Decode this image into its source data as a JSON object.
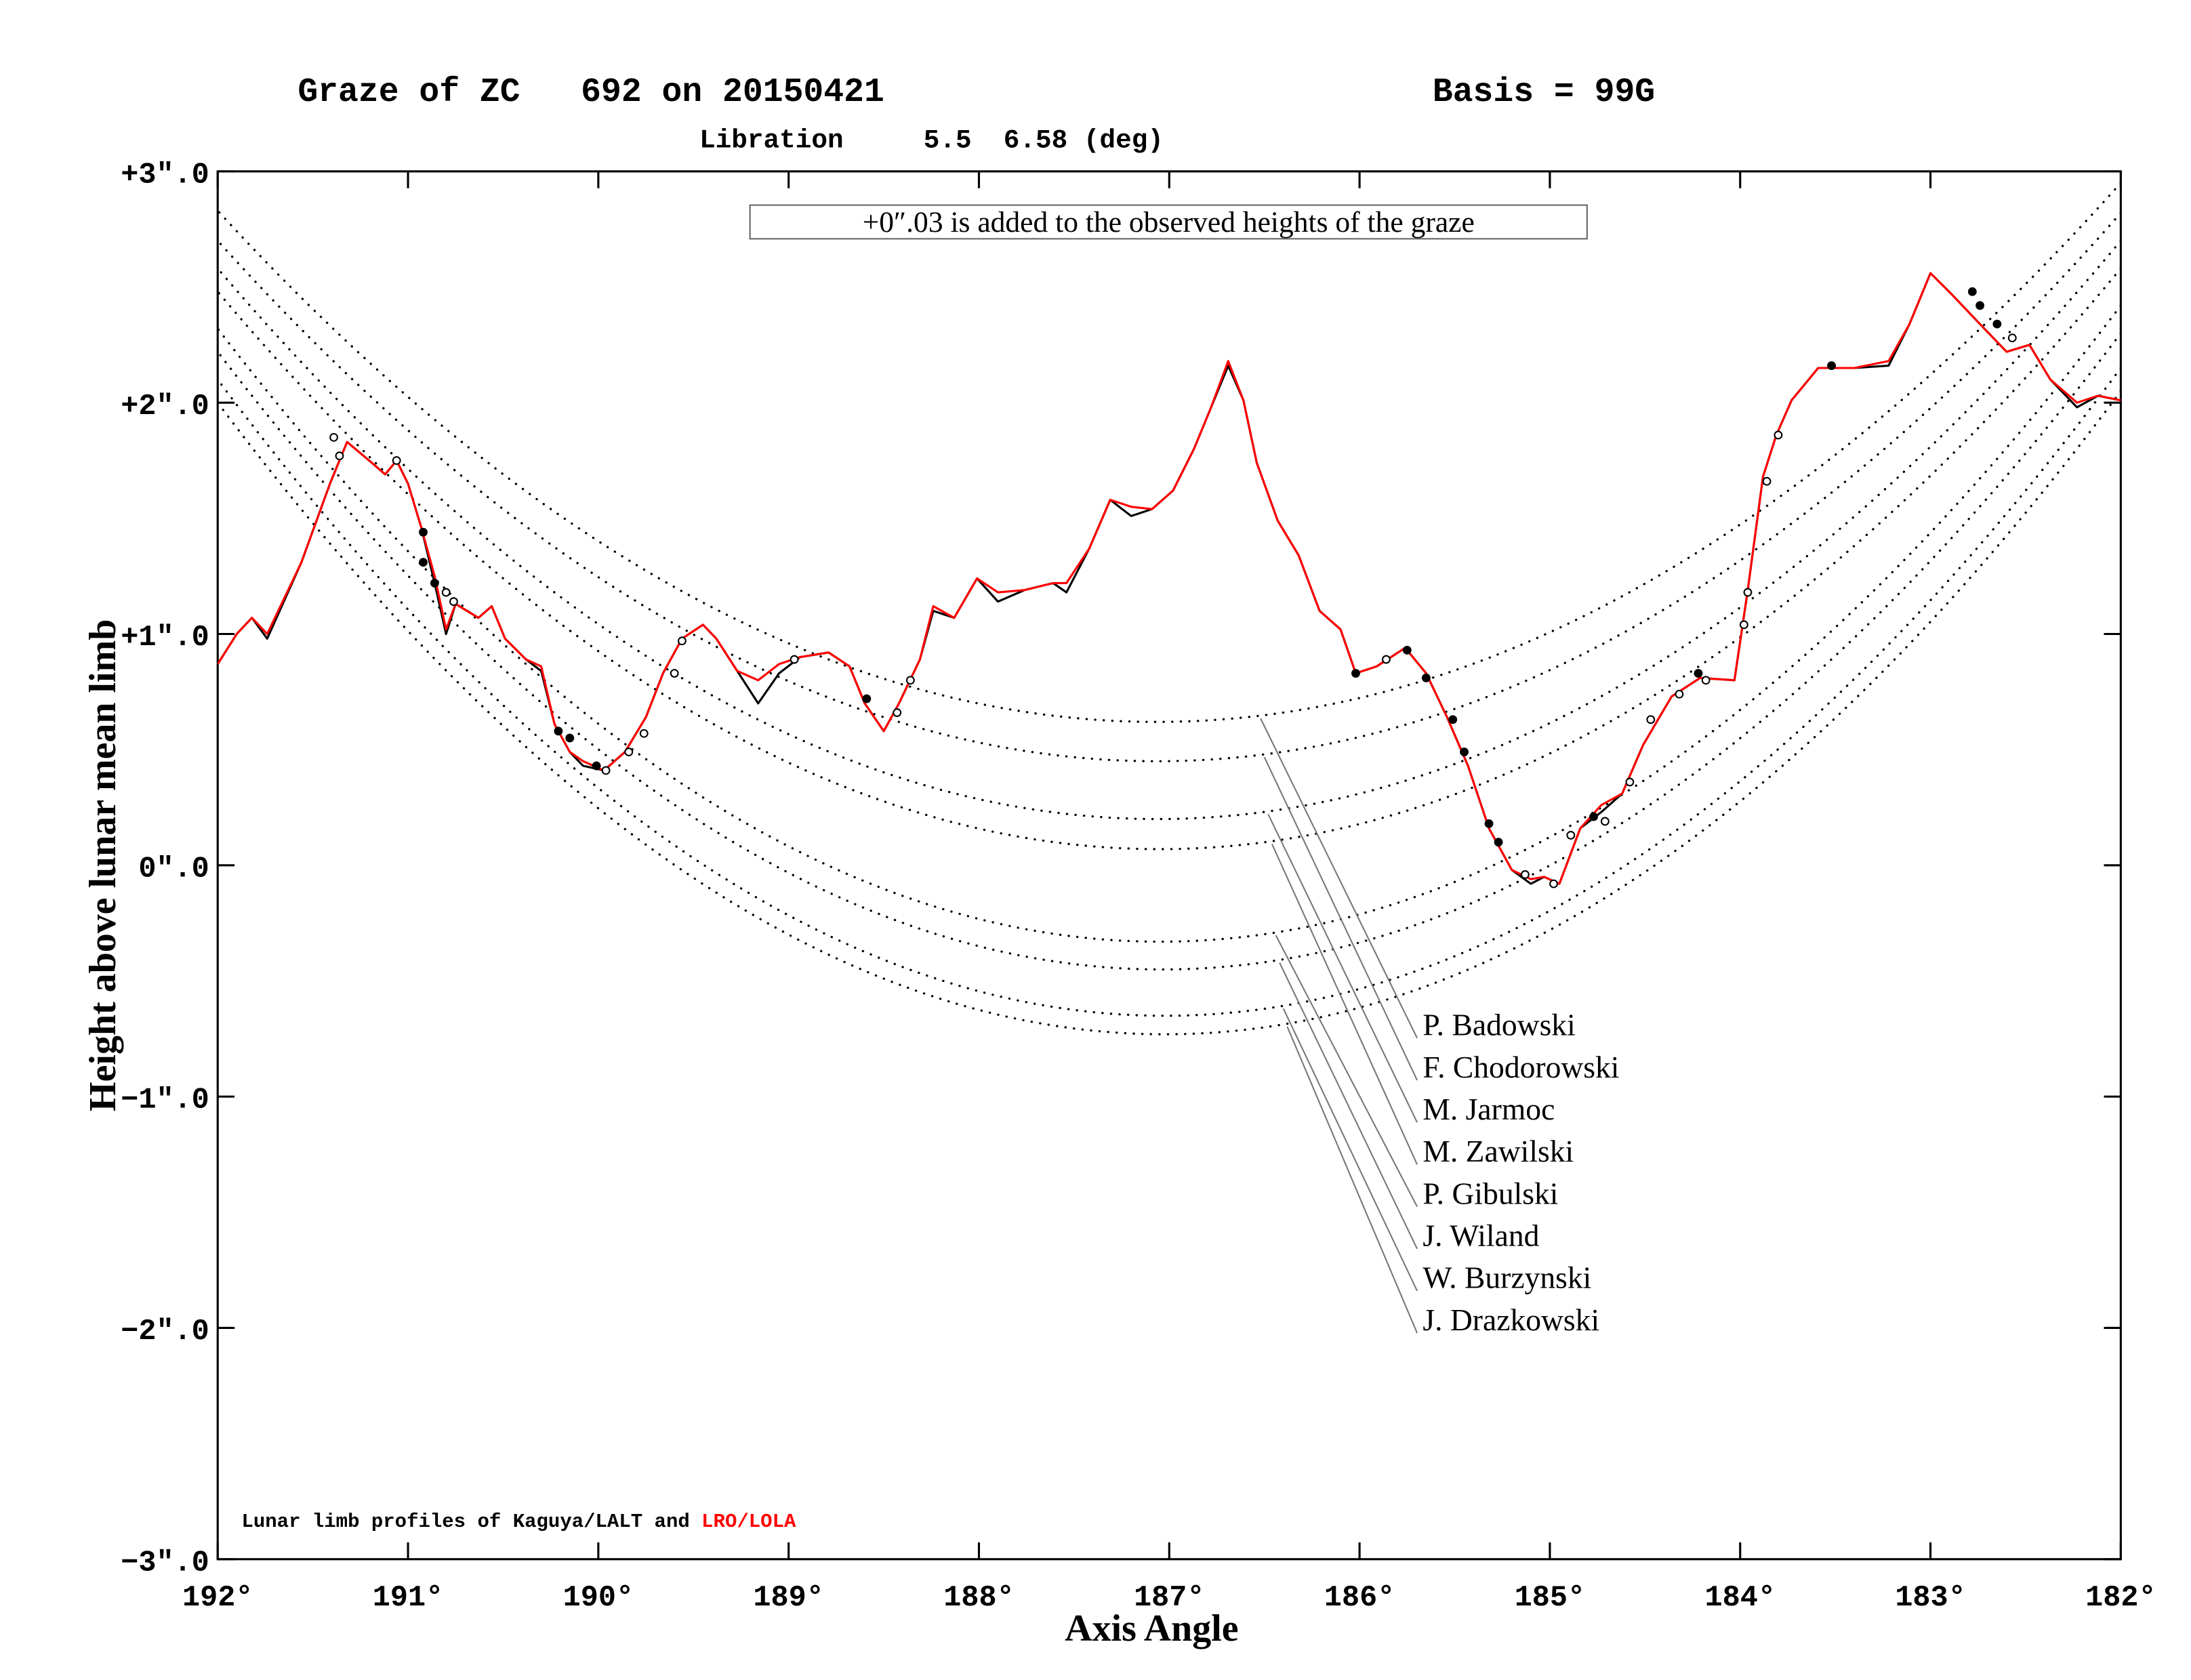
{
  "chart_data": {
    "type": "line",
    "title": "Graze of ZC   692 on 20150421",
    "basis": "Basis = 99G",
    "subtitle": "Libration     5.5  6.58 (deg)",
    "annotation": "+0″.03 is added to the observed heights of the graze",
    "xlabel": "Axis Angle",
    "ylabel": "Height above lunar mean limb",
    "legend_prefix": "Lunar limb profiles of",
    "legend_joiner": "and",
    "xlim": [
      192,
      182
    ],
    "ylim": [
      -3,
      3
    ],
    "xticks": [
      {
        "value": 192,
        "label": "192°"
      },
      {
        "value": 191,
        "label": "191°"
      },
      {
        "value": 190,
        "label": "190°"
      },
      {
        "value": 189,
        "label": "189°"
      },
      {
        "value": 188,
        "label": "188°"
      },
      {
        "value": 187,
        "label": "187°"
      },
      {
        "value": 186,
        "label": "186°"
      },
      {
        "value": 185,
        "label": "185°"
      },
      {
        "value": 184,
        "label": "184°"
      },
      {
        "value": 183,
        "label": "183°"
      },
      {
        "value": 182,
        "label": "182°"
      }
    ],
    "yticks": [
      {
        "value": 3,
        "label": "+3″.0"
      },
      {
        "value": 2,
        "label": "+2″.0"
      },
      {
        "value": 1,
        "label": "+1″.0"
      },
      {
        "value": 0,
        "label": "0″.0"
      },
      {
        "value": -1,
        "label": "−1″.0"
      },
      {
        "value": -2,
        "label": "−2″.0"
      },
      {
        "value": -3,
        "label": "−3″.0"
      }
    ],
    "x": [
      192.0,
      191.9,
      191.82,
      191.74,
      191.56,
      191.41,
      191.32,
      191.19,
      191.12,
      191.06,
      191.0,
      190.93,
      190.86,
      190.8,
      190.75,
      190.63,
      190.56,
      190.49,
      190.38,
      190.3,
      190.23,
      190.15,
      190.08,
      189.97,
      189.86,
      189.75,
      189.66,
      189.56,
      189.45,
      189.38,
      189.27,
      189.16,
      189.05,
      188.94,
      188.79,
      188.68,
      188.6,
      188.5,
      188.42,
      188.31,
      188.24,
      188.13,
      188.01,
      187.9,
      187.76,
      187.61,
      187.54,
      187.42,
      187.31,
      187.2,
      187.09,
      186.98,
      186.87,
      186.78,
      186.69,
      186.61,
      186.54,
      186.43,
      186.32,
      186.21,
      186.1,
      186.02,
      185.91,
      185.76,
      185.65,
      185.54,
      185.43,
      185.32,
      185.2,
      185.1,
      185.03,
      184.95,
      184.84,
      184.73,
      184.62,
      184.51,
      184.36,
      184.21,
      184.03,
      183.96,
      183.88,
      183.81,
      183.73,
      183.59,
      183.4,
      183.22,
      183.11,
      183.0,
      182.89,
      182.74,
      182.6,
      182.48,
      182.37,
      182.23,
      182.12,
      182.0
    ],
    "series": [
      {
        "name": "Kaguya/LALT",
        "color": "#000000",
        "values": [
          0.87,
          1.0,
          1.07,
          0.98,
          1.31,
          1.65,
          1.83,
          1.74,
          1.69,
          1.75,
          1.65,
          1.46,
          1.22,
          1.0,
          1.13,
          1.07,
          1.12,
          0.98,
          0.89,
          0.84,
          0.61,
          0.49,
          0.43,
          0.41,
          0.49,
          0.64,
          0.83,
          0.98,
          1.04,
          0.98,
          0.84,
          0.7,
          0.83,
          0.9,
          0.92,
          0.86,
          0.7,
          0.58,
          0.7,
          0.89,
          1.1,
          1.07,
          1.24,
          1.14,
          1.19,
          1.22,
          1.18,
          1.37,
          1.58,
          1.51,
          1.54,
          1.62,
          1.8,
          1.98,
          2.16,
          2.01,
          1.74,
          1.49,
          1.34,
          1.1,
          1.02,
          0.83,
          0.86,
          0.94,
          0.83,
          0.64,
          0.43,
          0.16,
          -0.02,
          -0.08,
          -0.05,
          -0.08,
          0.16,
          0.23,
          0.31,
          0.52,
          0.73,
          0.81,
          0.8,
          1.19,
          1.68,
          1.86,
          2.01,
          2.15,
          2.15,
          2.16,
          2.34,
          2.56,
          2.47,
          2.34,
          2.22,
          2.25,
          2.1,
          1.98,
          2.03,
          2.01
        ]
      },
      {
        "name": "LRO/LOLA",
        "color": "#ff0000",
        "values": [
          0.87,
          1.0,
          1.07,
          1.0,
          1.31,
          1.65,
          1.83,
          1.74,
          1.69,
          1.75,
          1.65,
          1.46,
          1.25,
          1.02,
          1.13,
          1.07,
          1.12,
          0.98,
          0.89,
          0.86,
          0.61,
          0.49,
          0.45,
          0.41,
          0.49,
          0.64,
          0.83,
          0.98,
          1.04,
          0.98,
          0.84,
          0.8,
          0.87,
          0.9,
          0.92,
          0.86,
          0.7,
          0.58,
          0.7,
          0.89,
          1.12,
          1.07,
          1.24,
          1.18,
          1.19,
          1.22,
          1.22,
          1.37,
          1.58,
          1.55,
          1.54,
          1.62,
          1.8,
          1.98,
          2.18,
          2.01,
          1.74,
          1.49,
          1.34,
          1.1,
          1.02,
          0.83,
          0.86,
          0.94,
          0.83,
          0.64,
          0.43,
          0.16,
          -0.02,
          -0.06,
          -0.05,
          -0.08,
          0.16,
          0.26,
          0.31,
          0.52,
          0.73,
          0.81,
          0.8,
          1.19,
          1.68,
          1.86,
          2.01,
          2.15,
          2.15,
          2.18,
          2.34,
          2.56,
          2.47,
          2.34,
          2.22,
          2.25,
          2.1,
          2.0,
          2.03,
          2.01
        ]
      }
    ],
    "observers": [
      {
        "name": "P. Badowski",
        "arc_x": [
          192,
          187.1,
          182
        ],
        "arc_y": [
          2.83,
          0.62,
          2.95
        ]
      },
      {
        "name": "F. Chodorowski",
        "arc_x": [
          192,
          187.1,
          182
        ],
        "arc_y": [
          2.7,
          0.45,
          2.82
        ]
      },
      {
        "name": "M. Jarmoc",
        "arc_x": [
          192,
          187.1,
          182
        ],
        "arc_y": [
          2.58,
          0.2,
          2.7
        ]
      },
      {
        "name": "M. Zawilski",
        "arc_x": [
          192,
          187.1,
          182
        ],
        "arc_y": [
          2.48,
          0.07,
          2.58
        ]
      },
      {
        "name": "P. Gibulski",
        "arc_x": [
          192,
          187.1,
          182
        ],
        "arc_y": [
          2.32,
          -0.33,
          2.42
        ]
      },
      {
        "name": "J. Wiland",
        "arc_x": [
          192,
          187.1,
          182
        ],
        "arc_y": [
          2.22,
          -0.45,
          2.3
        ]
      },
      {
        "name": "W. Burzynski",
        "arc_x": [
          192,
          187.1,
          182
        ],
        "arc_y": [
          2.1,
          -0.65,
          2.15
        ]
      },
      {
        "name": "J. Drazkowski",
        "arc_x": [
          192,
          187.1,
          182
        ],
        "arc_y": [
          2.0,
          -0.73,
          2.05
        ]
      }
    ],
    "open_points": {
      "x": [
        191.39,
        191.36,
        191.06,
        190.8,
        190.76,
        189.96,
        189.84,
        189.76,
        189.6,
        189.56,
        188.97,
        188.43,
        188.36,
        185.86,
        185.13,
        184.98,
        184.89,
        184.71,
        184.58,
        184.47,
        184.32,
        184.18,
        183.98,
        183.96,
        183.86,
        183.8,
        182.57
      ],
      "y": [
        1.85,
        1.77,
        1.75,
        1.18,
        1.14,
        0.41,
        0.49,
        0.57,
        0.83,
        0.97,
        0.89,
        0.66,
        0.8,
        0.89,
        -0.04,
        -0.08,
        0.13,
        0.19,
        0.36,
        0.63,
        0.74,
        0.8,
        1.04,
        1.18,
        1.66,
        1.86,
        2.28
      ]
    },
    "filled_points": {
      "x": [
        190.92,
        190.92,
        190.86,
        190.21,
        190.15,
        190.01,
        188.59,
        186.02,
        185.75,
        185.65,
        185.51,
        185.45,
        185.32,
        185.27,
        184.77,
        184.22,
        183.52,
        182.78,
        182.74,
        182.65
      ],
      "y": [
        1.31,
        1.44,
        1.22,
        0.58,
        0.55,
        0.43,
        0.72,
        0.83,
        0.93,
        0.81,
        0.63,
        0.49,
        0.18,
        0.1,
        0.21,
        0.83,
        2.16,
        2.48,
        2.42,
        2.34
      ]
    }
  }
}
